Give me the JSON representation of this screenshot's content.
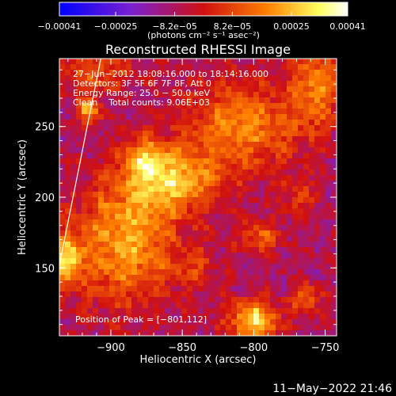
{
  "chart_data": {
    "type": "heatmap",
    "title": "Reconstructed RHESSI Image",
    "xlabel": "Heliocentric X (arcsec)",
    "ylabel": "Heliocentric Y (arcsec)",
    "xlim": [
      -936,
      -742
    ],
    "ylim": [
      102,
      298
    ],
    "x_ticks": [
      -900,
      -850,
      -800,
      -750
    ],
    "x_tick_labels": [
      "−900",
      "−850",
      "−800",
      "−750"
    ],
    "y_ticks": [
      150,
      200,
      250
    ],
    "y_tick_labels": [
      "150",
      "200",
      "250"
    ],
    "colorbar": {
      "range": [
        -0.00041,
        0.00041
      ],
      "ticks": [
        -0.00041,
        -0.00025,
        -8.2e-05,
        8.2e-05,
        0.00025,
        0.00041
      ],
      "tick_labels": [
        "−0.00041",
        "−0.00025",
        "−8.2e−05",
        "8.2e−05",
        "0.00025",
        "0.00041"
      ],
      "unit_label": "(photons cm⁻² s⁻¹ asec⁻²)",
      "colors": [
        "#0000ff",
        "#7a20d0",
        "#d01010",
        "#ff8000",
        "#ffff60",
        "#ffffff"
      ]
    },
    "sources": [
      {
        "x": -890,
        "y": 168,
        "sx": 26,
        "sy": 30,
        "amp": 0.0003
      },
      {
        "x": -858,
        "y": 212,
        "sx": 22,
        "sy": 16,
        "amp": 0.00032
      },
      {
        "x": -877,
        "y": 228,
        "sx": 10,
        "sy": 10,
        "amp": 0.00022
      },
      {
        "x": -800,
        "y": 113,
        "sx": 12,
        "sy": 10,
        "amp": 0.00038
      },
      {
        "x": -931,
        "y": 155,
        "sx": 7,
        "sy": 12,
        "amp": 0.00035
      },
      {
        "x": -916,
        "y": 261,
        "sx": 6,
        "sy": 6,
        "amp": 0.0003
      },
      {
        "x": -808,
        "y": 250,
        "sx": 28,
        "sy": 22,
        "amp": 0.00026
      },
      {
        "x": -756,
        "y": 280,
        "sx": 12,
        "sy": 22,
        "amp": 0.00024
      },
      {
        "x": -796,
        "y": 172,
        "sx": 10,
        "sy": 8,
        "amp": 0.0002
      },
      {
        "x": -910,
        "y": 288,
        "sx": 20,
        "sy": 10,
        "amp": 0.00018
      },
      {
        "x": -763,
        "y": 128,
        "sx": 7,
        "sy": 7,
        "amp": 0.00022
      },
      {
        "x": -840,
        "y": 150,
        "sx": 10,
        "sy": 10,
        "amp": 0.00012
      },
      {
        "x": -770,
        "y": 200,
        "sx": 8,
        "sy": 10,
        "amp": 0.00014
      }
    ],
    "limb_line": [
      [
        -936,
        152
      ],
      [
        -907,
        298
      ]
    ],
    "peak_label": "Position of Peak = [−801,112]",
    "info_lines": [
      "27−Jun−2012 18:08:16.000 to 18:14:16.000",
      "Detectors: 3F 5F 6F 7F 8F, Att 0",
      "Energy Range: 25.0 − 50.0 keV",
      "Clean    Total counts: 9.06E+03"
    ]
  },
  "footer": {
    "timestamp": "11−May−2022 21:46"
  }
}
